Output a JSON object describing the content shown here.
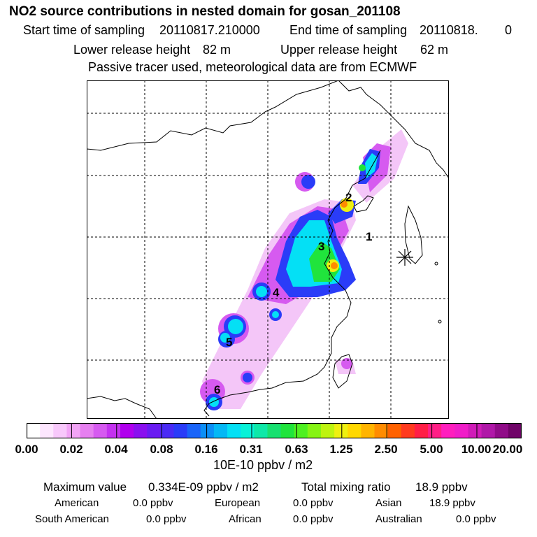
{
  "header": {
    "title": "NO2 source contributions in nested domain for gosan_201108",
    "start_label": "Start time of sampling",
    "start_value": "20110817.210000",
    "end_label": "End time of sampling",
    "end_value": "20110818.",
    "end_extra": "0",
    "lower_label": "Lower release height",
    "lower_value": "82 m",
    "upper_label": "Upper release height",
    "upper_value": "62 m",
    "note": "Passive tracer used, meteorological data are from ECMWF"
  },
  "map": {
    "labels": [
      "1",
      "2",
      "3",
      "4",
      "5",
      "6"
    ],
    "receptor_marker": "receptor-star-icon"
  },
  "colorbar": {
    "colors": [
      "#ffffff",
      "#fde6fe",
      "#f8c8fb",
      "#f2a4f6",
      "#e67ff0",
      "#d65af0",
      "#c432f0",
      "#b000ee",
      "#8a10ef",
      "#6a1cf2",
      "#4a2bf5",
      "#2a3cf8",
      "#1a64f9",
      "#0b8ff6",
      "#04b8f5",
      "#04e0f5",
      "#08f2d8",
      "#0ee8a8",
      "#18e070",
      "#20e43c",
      "#4ef020",
      "#86f414",
      "#bef410",
      "#eef010",
      "#ffd800",
      "#ffb400",
      "#ff8c00",
      "#ff6200",
      "#ff3a1e",
      "#ff1e46",
      "#ff1e86",
      "#ff1ebe",
      "#f01ec8",
      "#d01cb8",
      "#b018a8",
      "#900c88",
      "#700468"
    ],
    "tick_labels": [
      "0.00",
      "0.02",
      "0.04",
      "0.08",
      "0.16",
      "0.31",
      "0.63",
      "1.25",
      "2.50",
      "5.00",
      "10.00",
      "20.00"
    ],
    "unit": "10E-10 ppbv / m2"
  },
  "summary": {
    "max_label": "Maximum value",
    "max_value": "0.334E-09 ppbv / m2",
    "total_label": "Total mixing ratio",
    "total_value": "18.9 ppbv",
    "regions": [
      {
        "name": "American",
        "value": "0.0 ppbv"
      },
      {
        "name": "European",
        "value": "0.0 ppbv"
      },
      {
        "name": "Asian",
        "value": "18.9 ppbv"
      },
      {
        "name": "South American",
        "value": "0.0 ppbv"
      },
      {
        "name": "African",
        "value": "0.0 ppbv"
      },
      {
        "name": "Australian",
        "value": "0.0 ppbv"
      }
    ]
  }
}
